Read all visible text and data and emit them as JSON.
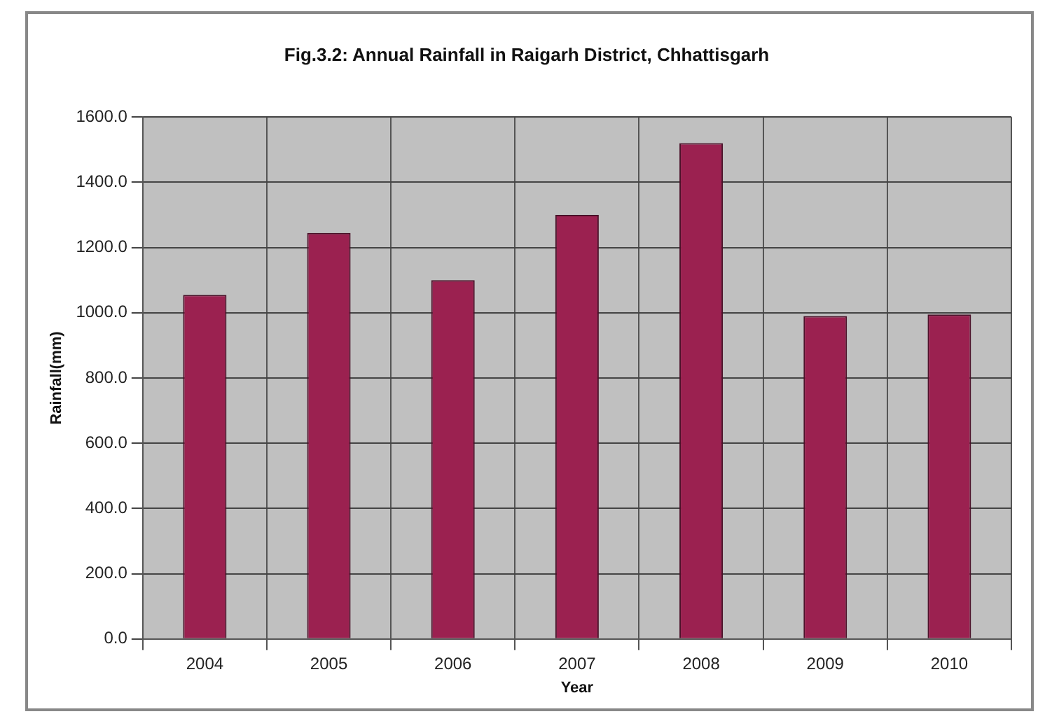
{
  "chart_data": {
    "type": "bar",
    "title": "Fig.3.2: Annual Rainfall in Raigarh District, Chhattisgarh",
    "xlabel": "Year",
    "ylabel": "Rainfall(mm)",
    "categories": [
      "2004",
      "2005",
      "2006",
      "2007",
      "2008",
      "2009",
      "2010"
    ],
    "values": [
      1055,
      1245,
      1100,
      1300,
      1520,
      990,
      995
    ],
    "color": "#9b2150",
    "ylim": [
      0,
      1600
    ],
    "yticks": [
      {
        "value": 0,
        "label": "0.0"
      },
      {
        "value": 200,
        "label": "200.0"
      },
      {
        "value": 400,
        "label": "400.0"
      },
      {
        "value": 600,
        "label": "600.0"
      },
      {
        "value": 800,
        "label": "800.0"
      },
      {
        "value": 1000,
        "label": "1000.0"
      },
      {
        "value": 1200,
        "label": "1200.0"
      },
      {
        "value": 1400,
        "label": "1400.0"
      },
      {
        "value": 1600,
        "label": "1600.0"
      }
    ],
    "grid": true
  }
}
